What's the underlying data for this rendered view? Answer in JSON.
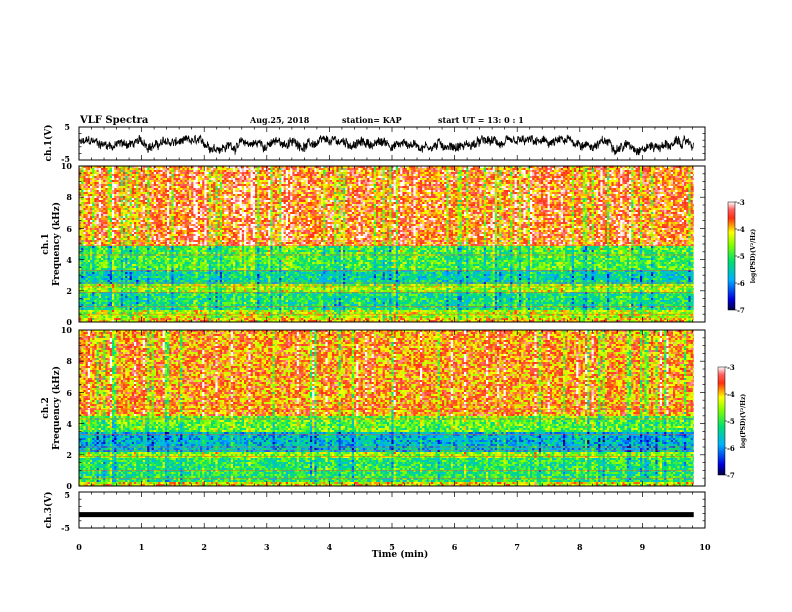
{
  "header": {
    "title": "VLF Spectra",
    "date": "Aug.25, 2018",
    "station": "station= KAP",
    "start": "start  UT =  13: 0  : 1"
  },
  "chart_data": {
    "type": "heatmap",
    "x_axis": {
      "label": "Time  (min)",
      "range": [
        0,
        10
      ],
      "ticks": [
        "0",
        "1",
        "2",
        "3",
        "4",
        "5",
        "6",
        "7",
        "8",
        "9",
        "10"
      ],
      "data_end": 9.82
    },
    "panels": [
      {
        "id": "ch1_wave",
        "type": "line",
        "ylabel": "ch.1(V)",
        "ylim": [
          -5,
          5
        ],
        "yticks": [
          "5",
          "-5"
        ]
      },
      {
        "id": "ch1_spec",
        "type": "heatmap",
        "ylabel": "ch.1",
        "ylabel2": "Frequency  (kHz)",
        "ylim": [
          0,
          10
        ],
        "yticks": [
          "0",
          "2",
          "4",
          "6",
          "8",
          "10"
        ],
        "bands": [
          {
            "from": 0.0,
            "to": 0.3,
            "log_psd": -4.0
          },
          {
            "from": 0.3,
            "to": 0.8,
            "log_psd": -4.4
          },
          {
            "from": 0.8,
            "to": 2.0,
            "log_psd": -5.2
          },
          {
            "from": 2.0,
            "to": 2.5,
            "log_psd": -4.5
          },
          {
            "from": 2.5,
            "to": 3.4,
            "log_psd": -5.4
          },
          {
            "from": 3.4,
            "to": 4.9,
            "log_psd": -4.9
          },
          {
            "from": 4.9,
            "to": 10.0,
            "log_psd": -3.6
          }
        ]
      },
      {
        "id": "ch2_spec",
        "type": "heatmap",
        "ylabel": "ch.2",
        "ylabel2": "Frequency  (kHz)",
        "ylim": [
          0,
          10
        ],
        "yticks": [
          "0",
          "2",
          "4",
          "6",
          "8",
          "10"
        ],
        "bands": [
          {
            "from": 0.0,
            "to": 0.3,
            "log_psd": -4.2
          },
          {
            "from": 0.3,
            "to": 1.9,
            "log_psd": -5.1
          },
          {
            "from": 1.9,
            "to": 2.2,
            "log_psd": -4.6
          },
          {
            "from": 2.2,
            "to": 3.5,
            "log_psd": -5.7
          },
          {
            "from": 3.5,
            "to": 4.6,
            "log_psd": -4.8
          },
          {
            "from": 4.6,
            "to": 10.0,
            "log_psd": -3.8
          }
        ]
      },
      {
        "id": "ch3_wave",
        "type": "line",
        "ylabel": "ch.3(V)",
        "ylim": [
          -5,
          5
        ],
        "yticks": [
          "5",
          "-5"
        ],
        "values_x": [
          0,
          9.82
        ],
        "values_y": [
          -1.3,
          -1.3
        ]
      }
    ],
    "colorbar": {
      "label": "log(PSD)(V²/Hz)",
      "range": [
        -7,
        -3
      ],
      "ticks": [
        "-3",
        "-4",
        "-5",
        "-6",
        "-7"
      ]
    },
    "grid": false
  }
}
